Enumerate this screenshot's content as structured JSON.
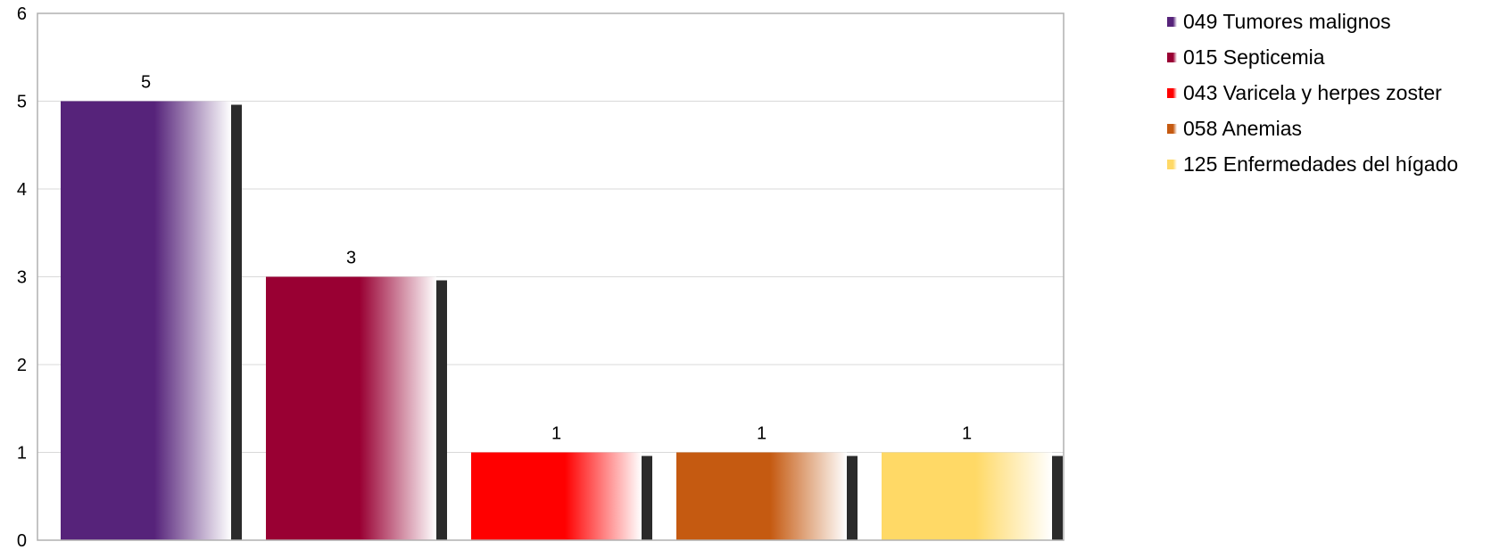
{
  "chart_data": {
    "type": "bar",
    "categories": [
      "049 Tumores malignos",
      "015 Septicemia",
      "043 Varicela y herpes zoster",
      "058 Anemias",
      "125 Enfermedades del hígado"
    ],
    "values": [
      5,
      3,
      1,
      1,
      1
    ],
    "colors": [
      "#56237a",
      "#990033",
      "#ff0000",
      "#c55a11",
      "#ffd966"
    ],
    "y_ticks": [
      "0",
      "1",
      "2",
      "3",
      "4",
      "5",
      "6"
    ],
    "data_labels": [
      "5",
      "3",
      "1",
      "1",
      "1"
    ],
    "ylim": [
      0,
      6
    ],
    "grid": true,
    "legend_position": "right"
  }
}
